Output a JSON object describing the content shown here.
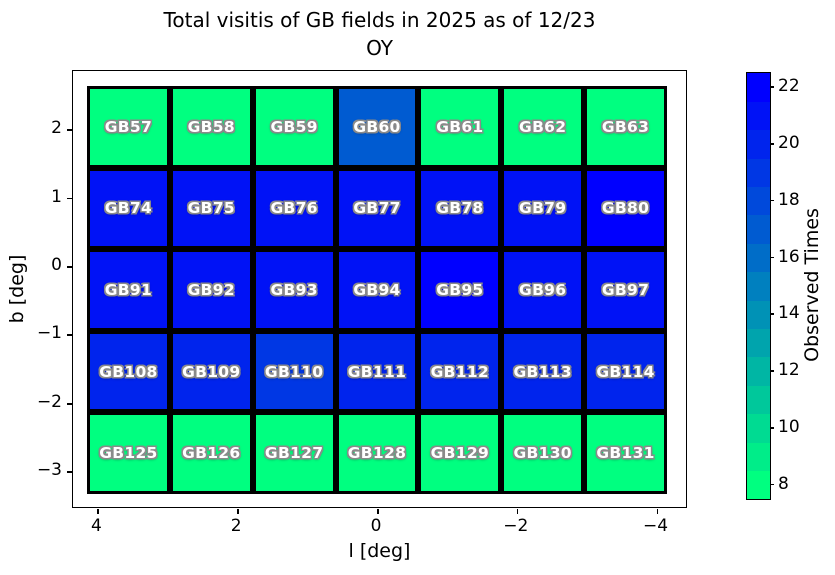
{
  "title": {
    "line1": "Total visitis of GB fields in 2025 as of 12/23",
    "line2": "OY"
  },
  "chart_data": {
    "type": "heatmap",
    "title": "Total visitis of GB fields in 2025 as of 12/23 OY",
    "xlabel": "l [deg]",
    "ylabel": "b [deg]",
    "x_axis_inverted": true,
    "x_range": [
      4.35,
      -4.45
    ],
    "y_range": [
      2.85,
      -3.55
    ],
    "x_ticks": [
      {
        "value": 4,
        "label": "4"
      },
      {
        "value": 2,
        "label": "2"
      },
      {
        "value": 0,
        "label": "0"
      },
      {
        "value": -2,
        "label": "−2"
      },
      {
        "value": -4,
        "label": "−4"
      }
    ],
    "y_ticks": [
      {
        "value": 2,
        "label": "2"
      },
      {
        "value": 1,
        "label": "1"
      },
      {
        "value": 0,
        "label": "0"
      },
      {
        "value": -1,
        "label": "−1"
      },
      {
        "value": -2,
        "label": "−2"
      },
      {
        "value": -3,
        "label": "−3"
      }
    ],
    "grid_rows": 5,
    "grid_cols": 7,
    "colormap": "winter_r",
    "colors": {
      "min_color": "#00ff7f",
      "max_color": "#0000ff",
      "grid_line": "#000000",
      "cell_text": "#ffffff"
    },
    "colorbar": {
      "label": "Observed Times",
      "ticks": [
        8,
        10,
        12,
        14,
        16,
        18,
        20,
        22
      ],
      "vmin": 7.5,
      "vmax": 22.5,
      "bands": 15
    },
    "cells": [
      {
        "label": "GB57",
        "value": 8
      },
      {
        "label": "GB58",
        "value": 8
      },
      {
        "label": "GB59",
        "value": 8
      },
      {
        "label": "GB60",
        "value": 17
      },
      {
        "label": "GB61",
        "value": 8
      },
      {
        "label": "GB62",
        "value": 8
      },
      {
        "label": "GB63",
        "value": 8
      },
      {
        "label": "GB74",
        "value": 21
      },
      {
        "label": "GB75",
        "value": 21
      },
      {
        "label": "GB76",
        "value": 21
      },
      {
        "label": "GB77",
        "value": 21
      },
      {
        "label": "GB78",
        "value": 21
      },
      {
        "label": "GB79",
        "value": 21
      },
      {
        "label": "GB80",
        "value": 22
      },
      {
        "label": "GB91",
        "value": 21
      },
      {
        "label": "GB92",
        "value": 21
      },
      {
        "label": "GB93",
        "value": 21
      },
      {
        "label": "GB94",
        "value": 21
      },
      {
        "label": "GB95",
        "value": 22
      },
      {
        "label": "GB96",
        "value": 21
      },
      {
        "label": "GB97",
        "value": 21
      },
      {
        "label": "GB108",
        "value": 20
      },
      {
        "label": "GB109",
        "value": 20
      },
      {
        "label": "GB110",
        "value": 19
      },
      {
        "label": "GB111",
        "value": 20
      },
      {
        "label": "GB112",
        "value": 20
      },
      {
        "label": "GB113",
        "value": 20
      },
      {
        "label": "GB114",
        "value": 20
      },
      {
        "label": "GB125",
        "value": 8
      },
      {
        "label": "GB126",
        "value": 8
      },
      {
        "label": "GB127",
        "value": 8
      },
      {
        "label": "GB128",
        "value": 8
      },
      {
        "label": "GB129",
        "value": 8
      },
      {
        "label": "GB130",
        "value": 8
      },
      {
        "label": "GB131",
        "value": 8
      }
    ]
  }
}
